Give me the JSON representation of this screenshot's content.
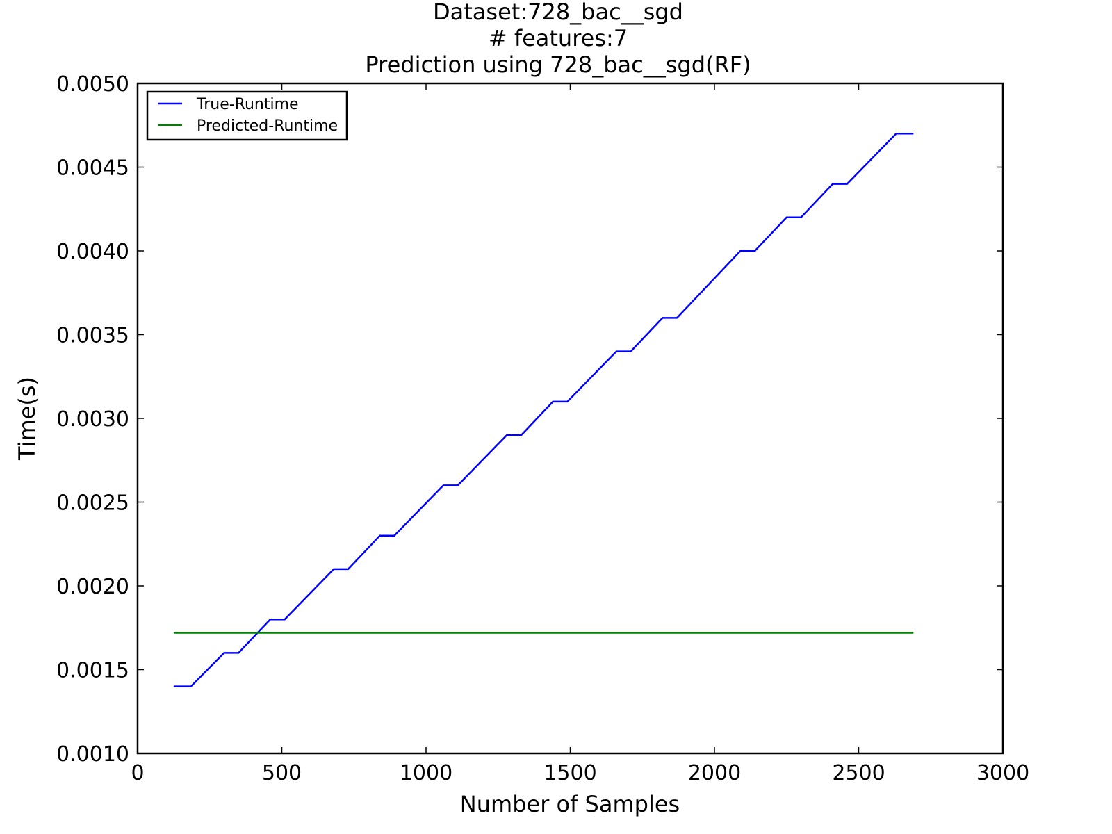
{
  "chart_data": {
    "type": "line",
    "title_lines": [
      "Dataset:728_bac__sgd",
      "# features:7",
      "Prediction using 728_bac__sgd(RF)"
    ],
    "xlabel": "Number of Samples",
    "ylabel": "Time(s)",
    "xlim": [
      0,
      3000
    ],
    "ylim": [
      0.001,
      0.005
    ],
    "xticks": [
      0,
      500,
      1000,
      1500,
      2000,
      2500,
      3000
    ],
    "xtick_labels": [
      "0",
      "500",
      "1000",
      "1500",
      "2000",
      "2500",
      "3000"
    ],
    "yticks": [
      0.001,
      0.0015,
      0.002,
      0.0025,
      0.003,
      0.0035,
      0.004,
      0.0045,
      0.005
    ],
    "ytick_labels": [
      "0.0010",
      "0.0015",
      "0.0020",
      "0.0025",
      "0.0030",
      "0.0035",
      "0.0040",
      "0.0045",
      "0.0050"
    ],
    "grid": false,
    "legend_position": "top-left",
    "series": [
      {
        "name": "True-Runtime",
        "color": "#0000ff",
        "x": [
          125,
          185,
          300,
          350,
          460,
          510,
          680,
          730,
          840,
          890,
          1060,
          1110,
          1280,
          1330,
          1440,
          1490,
          1660,
          1710,
          1820,
          1870,
          2090,
          2140,
          2250,
          2300,
          2410,
          2460,
          2630,
          2690
        ],
        "y": [
          0.0014,
          0.0014,
          0.0016,
          0.0016,
          0.0018,
          0.0018,
          0.0021,
          0.0021,
          0.0023,
          0.0023,
          0.0026,
          0.0026,
          0.0029,
          0.0029,
          0.0031,
          0.0031,
          0.0034,
          0.0034,
          0.0036,
          0.0036,
          0.004,
          0.004,
          0.0042,
          0.0042,
          0.0044,
          0.0044,
          0.0047,
          0.0047
        ]
      },
      {
        "name": "Predicted-Runtime",
        "color": "#008000",
        "x": [
          125,
          2690
        ],
        "y": [
          0.00172,
          0.00172
        ]
      }
    ]
  }
}
